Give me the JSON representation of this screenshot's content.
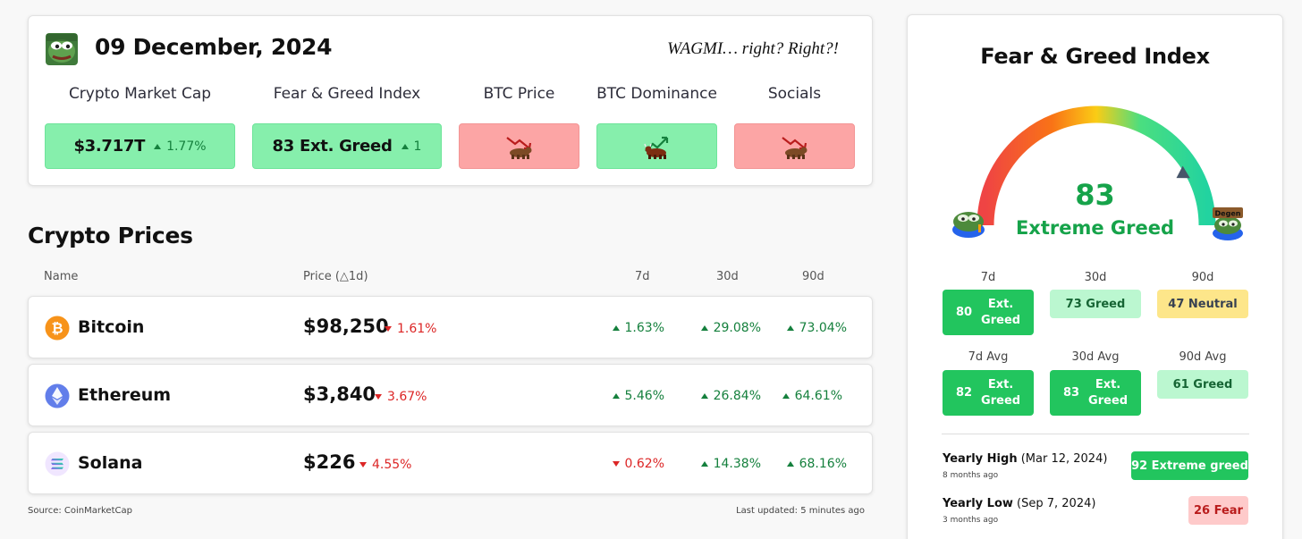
{
  "header": {
    "date": "09 December, 2024",
    "tagline": "WAGMI… right? Right?!",
    "metrics": [
      {
        "title": "Crypto Market Cap",
        "value": "$3.717T",
        "change": "1.77%",
        "status": "green"
      },
      {
        "title": "Fear & Greed Index",
        "value": "83 Ext. Greed",
        "change": "1",
        "status": "green"
      },
      {
        "title": "BTC Price",
        "icon": "bear-icon",
        "status": "red"
      },
      {
        "title": "BTC Dominance",
        "icon": "bull-icon",
        "status": "green"
      },
      {
        "title": "Socials",
        "icon": "bear-icon",
        "status": "red"
      }
    ]
  },
  "prices": {
    "title": "Crypto Prices",
    "columns": {
      "name": "Name",
      "price": "Price (△1d)",
      "d7": "7d",
      "d30": "30d",
      "d90": "90d"
    },
    "coins": [
      {
        "name": "Bitcoin",
        "icon": "bitcoin-icon",
        "price": "$98,250",
        "d1": "1.61%",
        "d7": "1.63%",
        "d30": "29.08%",
        "d90": "73.04%"
      },
      {
        "name": "Ethereum",
        "icon": "ethereum-icon",
        "price": "$3,840",
        "d1": "3.67%",
        "d7": "5.46%",
        "d30": "26.84%",
        "d90": "64.61%"
      },
      {
        "name": "Solana",
        "icon": "solana-icon",
        "price": "$226",
        "d1": "4.55%",
        "d7": "0.62%",
        "d30": "14.38%",
        "d90": "68.16%"
      }
    ],
    "source": "Source: CoinMarketCap",
    "last_updated": "Last updated: 5 minutes ago"
  },
  "fear_greed": {
    "title": "Fear & Greed Index",
    "value": 83,
    "label": "Extreme Greed",
    "left_badge": "",
    "right_badge": "Degen",
    "history": [
      {
        "period": "7d",
        "num": "80",
        "text": "Ext. Greed"
      },
      {
        "period": "30d",
        "text": "73 Greed"
      },
      {
        "period": "90d",
        "text": "47 Neutral"
      }
    ],
    "averages": [
      {
        "period": "7d Avg",
        "num": "82",
        "text": "Ext. Greed"
      },
      {
        "period": "30d Avg",
        "num": "83",
        "text": "Ext. Greed"
      },
      {
        "period": "90d Avg",
        "text": "61 Greed"
      }
    ],
    "yearly_high": {
      "label": "Yearly High",
      "date": "(Mar 12, 2024)",
      "ago": "8 months ago",
      "badge": "92 Extreme greed"
    },
    "yearly_low": {
      "label": "Yearly Low",
      "date": "(Sep 7, 2024)",
      "ago": "3 months ago",
      "badge": "26 Fear"
    }
  },
  "colors": {
    "green_box": "#86efac",
    "red_box": "#fca5a5",
    "positive": "#15803d",
    "negative": "#dc2626",
    "gauge_value": "#16a34a"
  }
}
